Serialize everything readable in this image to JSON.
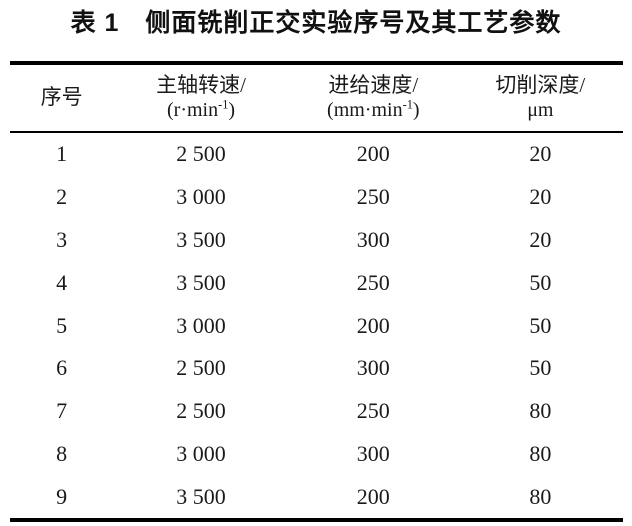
{
  "title": "表 1　侧面铣削正交实验序号及其工艺参数",
  "table": {
    "columns": [
      {
        "line1": "序号",
        "unit_pre": "",
        "unit_sup": "",
        "unit_post": ""
      },
      {
        "line1": "主轴转速/",
        "unit_pre": "(r·min",
        "unit_sup": "-1",
        "unit_post": ")"
      },
      {
        "line1": "进给速度/",
        "unit_pre": "(mm·min",
        "unit_sup": "-1",
        "unit_post": ")"
      },
      {
        "line1": "切削深度/",
        "unit_pre": "μm",
        "unit_sup": "",
        "unit_post": ""
      }
    ],
    "rows": [
      [
        "1",
        "2 500",
        "200",
        "20"
      ],
      [
        "2",
        "3 000",
        "250",
        "20"
      ],
      [
        "3",
        "3 500",
        "300",
        "20"
      ],
      [
        "4",
        "3 500",
        "250",
        "50"
      ],
      [
        "5",
        "3 000",
        "200",
        "50"
      ],
      [
        "6",
        "2 500",
        "300",
        "50"
      ],
      [
        "7",
        "2 500",
        "250",
        "80"
      ],
      [
        "8",
        "3 000",
        "300",
        "80"
      ],
      [
        "9",
        "3 500",
        "200",
        "80"
      ]
    ]
  },
  "colors": {
    "text": "#1a1a1a",
    "rule": "#000000",
    "background": "#ffffff"
  }
}
